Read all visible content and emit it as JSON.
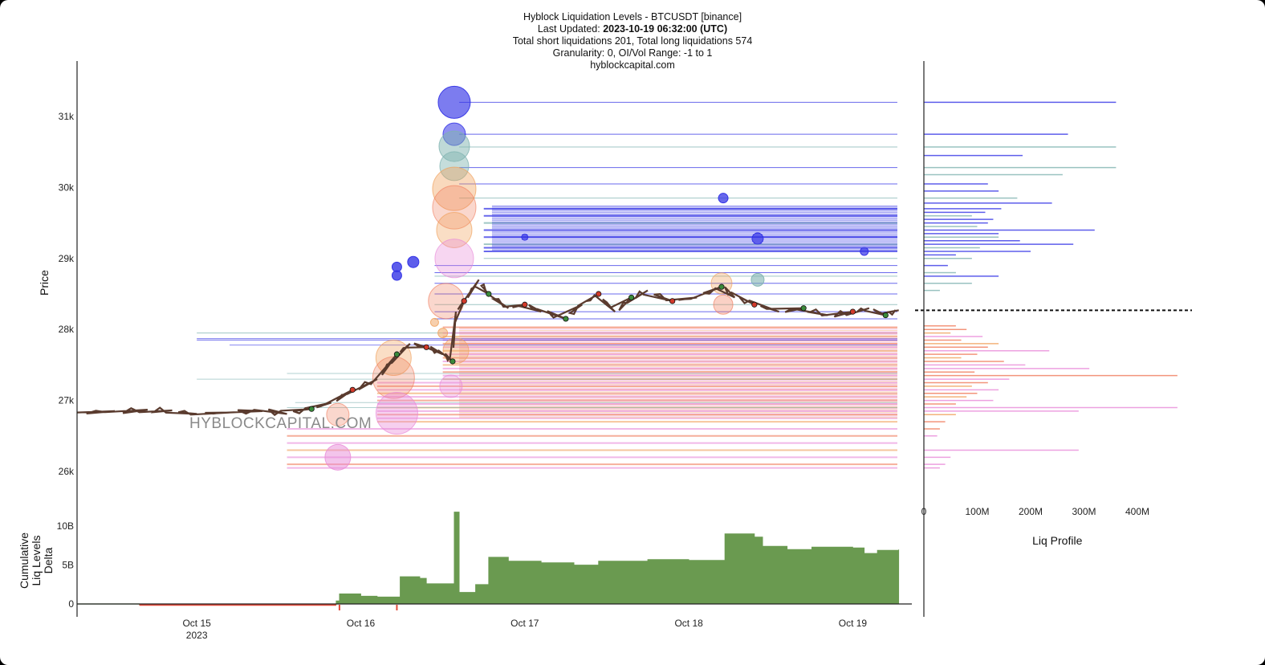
{
  "header": {
    "title": "Hyblock Liquidation Levels - BTCUSDT [binance]",
    "updated_prefix": "Last Updated:",
    "updated_value": "2023-10-19 06:32:00 (UTC)",
    "totals": "Total short liquidations 201, Total long liquidations 574",
    "granularity": "Granularity: 0, OI/Vol Range: -1 to 1",
    "site": "hyblockcapital.com"
  },
  "watermark": "HYBLOCKCAPITAL.COM",
  "colors": {
    "short_levels": "#3535e6",
    "short_levels_alt": "#7fb3b0",
    "long_levels": "#f07a5a",
    "long_levels_alt": "#e889d8",
    "long_levels_mid": "#f0a05a",
    "price_line": "#5a3b2e",
    "delta_positive": "#6a9a50",
    "delta_negative": "#e24a3a",
    "current_price_marker": "#111111"
  },
  "chart_data": [
    {
      "type": "line",
      "name": "price",
      "ylabel": "Price",
      "x_ticks": [
        "Oct 15",
        "Oct 16",
        "Oct 17",
        "Oct 18",
        "Oct 19"
      ],
      "x_tick_sub": "2023",
      "y_ticks": [
        "26k",
        "27k",
        "28k",
        "29k",
        "30k",
        "31k"
      ],
      "ylim": [
        25950,
        31600
      ],
      "xlim_days": [
        14.27,
        19.36
      ],
      "price_path": [
        [
          14.27,
          26830
        ],
        [
          14.5,
          26850
        ],
        [
          14.7,
          26870
        ],
        [
          14.85,
          26860
        ],
        [
          15.0,
          26810
        ],
        [
          15.2,
          26830
        ],
        [
          15.4,
          26850
        ],
        [
          15.55,
          26810
        ],
        [
          15.7,
          26880
        ],
        [
          15.82,
          26970
        ],
        [
          15.95,
          27150
        ],
        [
          16.1,
          27300
        ],
        [
          16.22,
          27650
        ],
        [
          16.3,
          27800
        ],
        [
          16.4,
          27750
        ],
        [
          16.5,
          27650
        ],
        [
          16.56,
          27550
        ],
        [
          16.58,
          28250
        ],
        [
          16.63,
          28400
        ],
        [
          16.72,
          28700
        ],
        [
          16.78,
          28500
        ],
        [
          16.9,
          28300
        ],
        [
          17.0,
          28350
        ],
        [
          17.1,
          28250
        ],
        [
          17.25,
          28150
        ],
        [
          17.35,
          28350
        ],
        [
          17.45,
          28500
        ],
        [
          17.55,
          28250
        ],
        [
          17.65,
          28450
        ],
        [
          17.75,
          28550
        ],
        [
          17.9,
          28400
        ],
        [
          18.05,
          28450
        ],
        [
          18.2,
          28600
        ],
        [
          18.28,
          28450
        ],
        [
          18.4,
          28350
        ],
        [
          18.55,
          28250
        ],
        [
          18.7,
          28300
        ],
        [
          18.85,
          28200
        ],
        [
          19.0,
          28250
        ],
        [
          19.1,
          28300
        ],
        [
          19.2,
          28200
        ],
        [
          19.28,
          28270
        ]
      ],
      "short_level_prices": [
        31200,
        30750,
        30570,
        30280,
        30050,
        29850,
        29700,
        29600,
        29500,
        29400,
        29300,
        29200,
        29150,
        29100,
        29000,
        28900,
        28800,
        28750,
        28650,
        28500,
        28350,
        28250,
        28150,
        27950,
        27870
      ],
      "long_level_prices": [
        28030,
        27950,
        27900,
        27850,
        27800,
        27750,
        27700,
        27650,
        27600,
        27550,
        27500,
        27450,
        27400,
        27350,
        27300,
        27250,
        27200,
        27150,
        27100,
        27050,
        27000,
        26950,
        26900,
        26850,
        26800,
        26750,
        26700,
        26600,
        26500,
        26400,
        26300,
        26200,
        26100,
        26050
      ]
    },
    {
      "type": "area",
      "name": "Cumulative Liq Levels Delta",
      "ylabel": "Cumulative Liq Levels Delta",
      "y_ticks": [
        "0",
        "5B",
        "10B"
      ],
      "ylim": [
        0,
        12
      ],
      "unit": "B",
      "values": [
        [
          14.27,
          0
        ],
        [
          14.65,
          -0.1
        ],
        [
          15.0,
          -0.15
        ],
        [
          15.6,
          -0.1
        ],
        [
          15.85,
          0.4
        ],
        [
          15.87,
          1.3
        ],
        [
          16.0,
          1.0
        ],
        [
          16.1,
          0.9
        ],
        [
          16.22,
          0.9
        ],
        [
          16.24,
          3.5
        ],
        [
          16.36,
          3.3
        ],
        [
          16.4,
          2.6
        ],
        [
          16.55,
          2.6
        ],
        [
          16.57,
          11.8
        ],
        [
          16.6,
          1.5
        ],
        [
          16.7,
          2.5
        ],
        [
          16.78,
          6.0
        ],
        [
          16.9,
          5.5
        ],
        [
          17.1,
          5.3
        ],
        [
          17.3,
          5.0
        ],
        [
          17.45,
          5.5
        ],
        [
          17.75,
          5.7
        ],
        [
          18.0,
          5.6
        ],
        [
          18.2,
          5.6
        ],
        [
          18.22,
          9.0
        ],
        [
          18.4,
          8.6
        ],
        [
          18.45,
          7.4
        ],
        [
          18.6,
          7.0
        ],
        [
          18.75,
          7.3
        ],
        [
          19.0,
          7.2
        ],
        [
          19.07,
          6.5
        ],
        [
          19.15,
          6.9
        ],
        [
          19.28,
          7.0
        ]
      ]
    },
    {
      "type": "bar",
      "name": "Liq Profile",
      "xlabel": "Liq Profile",
      "x_ticks": [
        "0",
        "100M",
        "200M",
        "300M",
        "400M"
      ],
      "xlim": [
        0,
        500
      ],
      "orientation": "horizontal",
      "current_price": 28270,
      "bars": [
        [
          31200,
          360,
          "short"
        ],
        [
          30750,
          270,
          "short"
        ],
        [
          30570,
          360,
          "alt"
        ],
        [
          30450,
          185,
          "short"
        ],
        [
          30280,
          360,
          "alt"
        ],
        [
          30180,
          260,
          "alt"
        ],
        [
          30050,
          120,
          "short"
        ],
        [
          29950,
          140,
          "short"
        ],
        [
          29850,
          175,
          "alt"
        ],
        [
          29780,
          240,
          "short"
        ],
        [
          29700,
          145,
          "short"
        ],
        [
          29650,
          115,
          "short"
        ],
        [
          29600,
          90,
          "alt"
        ],
        [
          29550,
          130,
          "short"
        ],
        [
          29500,
          120,
          "short"
        ],
        [
          29450,
          100,
          "alt"
        ],
        [
          29400,
          320,
          "short"
        ],
        [
          29350,
          140,
          "short"
        ],
        [
          29300,
          140,
          "alt"
        ],
        [
          29250,
          180,
          "short"
        ],
        [
          29200,
          280,
          "short"
        ],
        [
          29150,
          105,
          "alt"
        ],
        [
          29100,
          200,
          "short"
        ],
        [
          29050,
          60,
          "short"
        ],
        [
          29000,
          90,
          "alt"
        ],
        [
          28900,
          45,
          "short"
        ],
        [
          28800,
          60,
          "alt"
        ],
        [
          28750,
          140,
          "short"
        ],
        [
          28650,
          90,
          "alt"
        ],
        [
          28550,
          30,
          "alt"
        ],
        [
          28050,
          60,
          "long"
        ],
        [
          28000,
          80,
          "long"
        ],
        [
          27950,
          50,
          "mid"
        ],
        [
          27900,
          110,
          "pink"
        ],
        [
          27850,
          70,
          "long"
        ],
        [
          27800,
          140,
          "mid"
        ],
        [
          27750,
          120,
          "long"
        ],
        [
          27700,
          235,
          "pink"
        ],
        [
          27650,
          100,
          "long"
        ],
        [
          27600,
          70,
          "mid"
        ],
        [
          27550,
          150,
          "long"
        ],
        [
          27500,
          190,
          "pink"
        ],
        [
          27450,
          310,
          "pink"
        ],
        [
          27400,
          95,
          "long"
        ],
        [
          27350,
          475,
          "long"
        ],
        [
          27300,
          160,
          "pink"
        ],
        [
          27250,
          120,
          "long"
        ],
        [
          27200,
          90,
          "mid"
        ],
        [
          27150,
          140,
          "pink"
        ],
        [
          27100,
          100,
          "long"
        ],
        [
          27050,
          80,
          "mid"
        ],
        [
          27000,
          130,
          "pink"
        ],
        [
          26950,
          60,
          "long"
        ],
        [
          26900,
          475,
          "pink"
        ],
        [
          26850,
          290,
          "pink"
        ],
        [
          26800,
          60,
          "mid"
        ],
        [
          26700,
          40,
          "long"
        ],
        [
          26600,
          30,
          "long"
        ],
        [
          26500,
          25,
          "pink"
        ],
        [
          26300,
          290,
          "pink"
        ],
        [
          26200,
          50,
          "pink"
        ],
        [
          26100,
          40,
          "pink"
        ],
        [
          26050,
          30,
          "pink"
        ]
      ]
    }
  ]
}
